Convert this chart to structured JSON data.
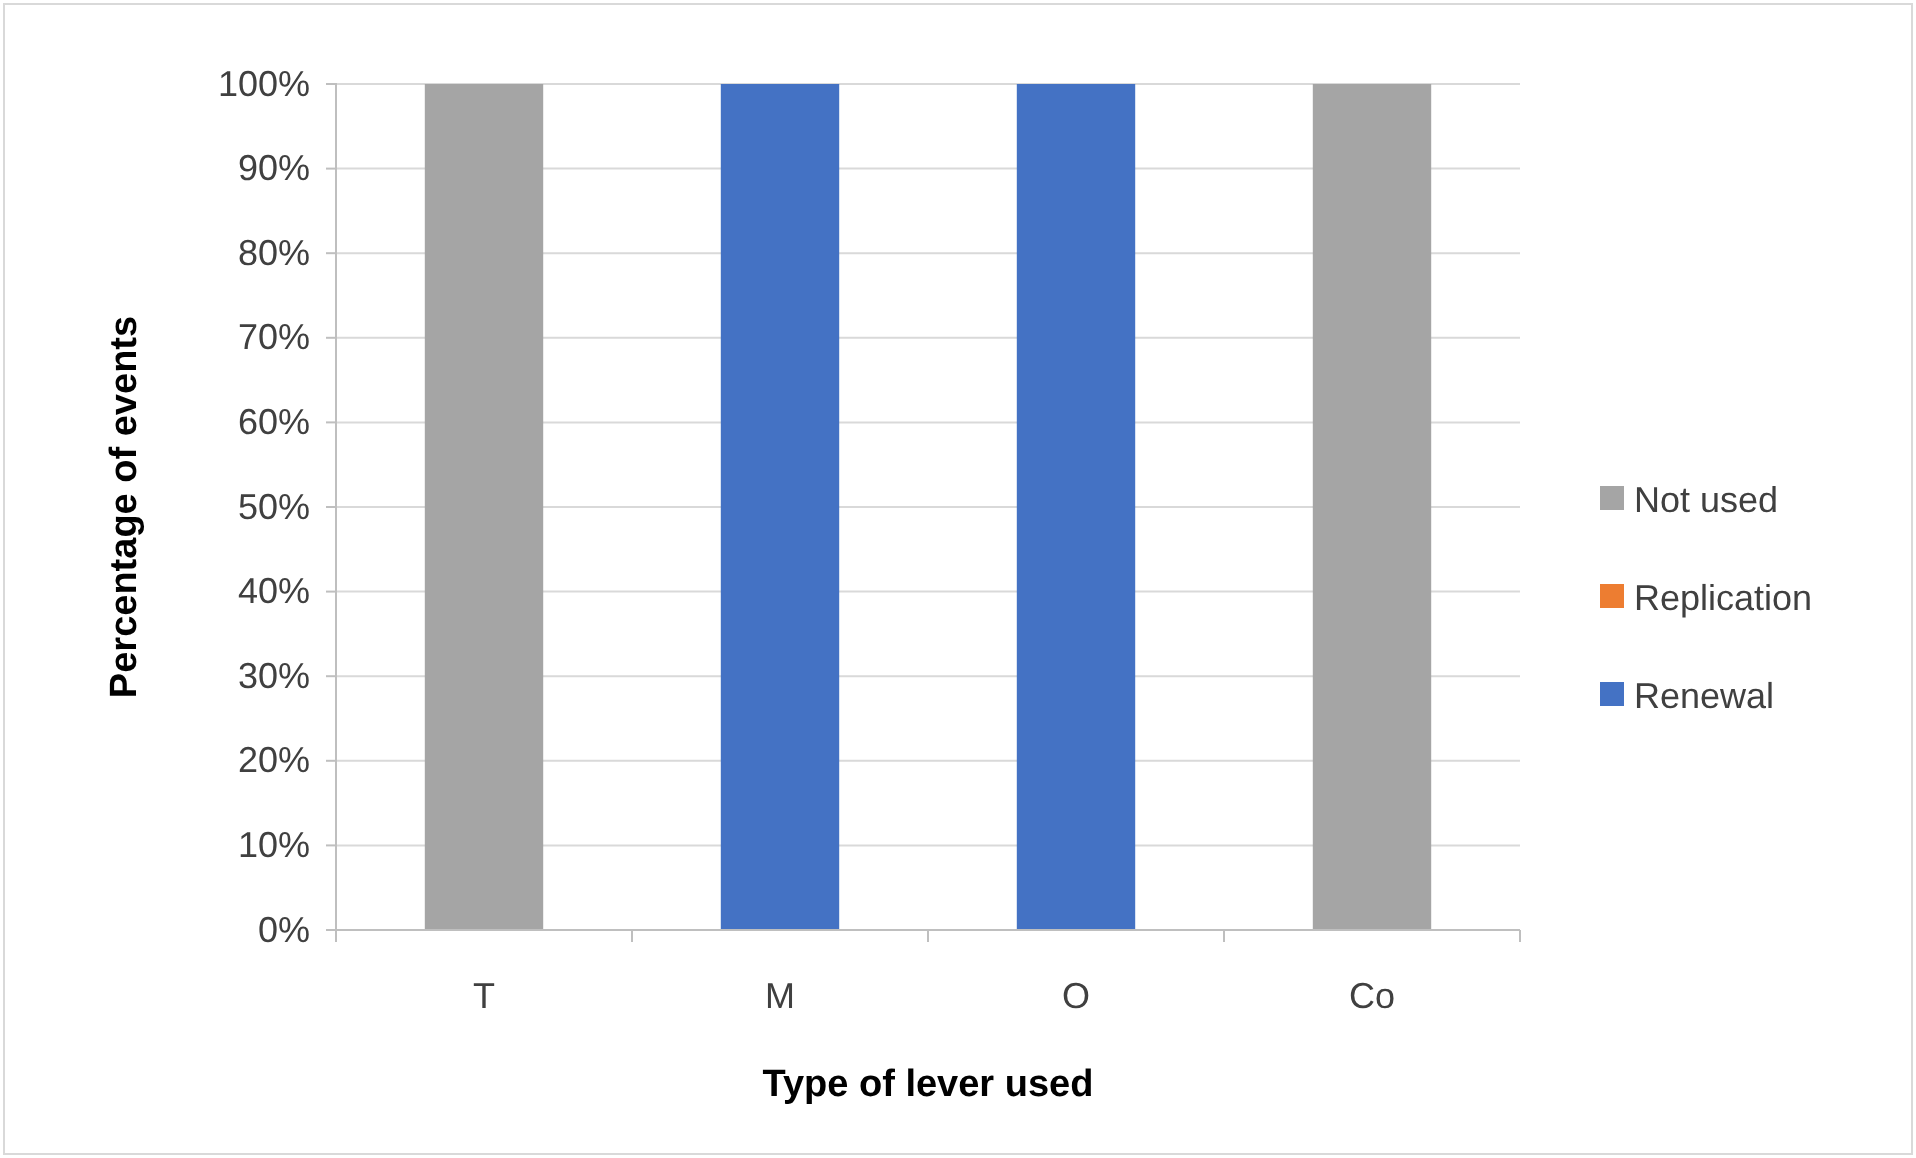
{
  "chart_data": {
    "type": "bar",
    "stacked": true,
    "xlabel": "Type of lever used",
    "ylabel": "Percentage of  events",
    "categories": [
      "T",
      "M",
      "O",
      "Co"
    ],
    "series": [
      {
        "name": "Renewal",
        "color": "#4472c4",
        "values": [
          0,
          100,
          100,
          0
        ]
      },
      {
        "name": "Replication",
        "color": "#ed7d31",
        "values": [
          0,
          0,
          0,
          0
        ]
      },
      {
        "name": "Not used",
        "color": "#a5a5a5",
        "values": [
          100,
          0,
          0,
          100
        ]
      }
    ],
    "ylim": [
      0,
      100
    ],
    "yticks": [
      {
        "value": 0,
        "label": "0%"
      },
      {
        "value": 10,
        "label": "10%"
      },
      {
        "value": 20,
        "label": "20%"
      },
      {
        "value": 30,
        "label": "30%"
      },
      {
        "value": 40,
        "label": "40%"
      },
      {
        "value": 50,
        "label": "50%"
      },
      {
        "value": 60,
        "label": "60%"
      },
      {
        "value": 70,
        "label": "70%"
      },
      {
        "value": 80,
        "label": "80%"
      },
      {
        "value": 90,
        "label": "90%"
      },
      {
        "value": 100,
        "label": "100%"
      }
    ],
    "grid": "y",
    "legend": "right"
  }
}
